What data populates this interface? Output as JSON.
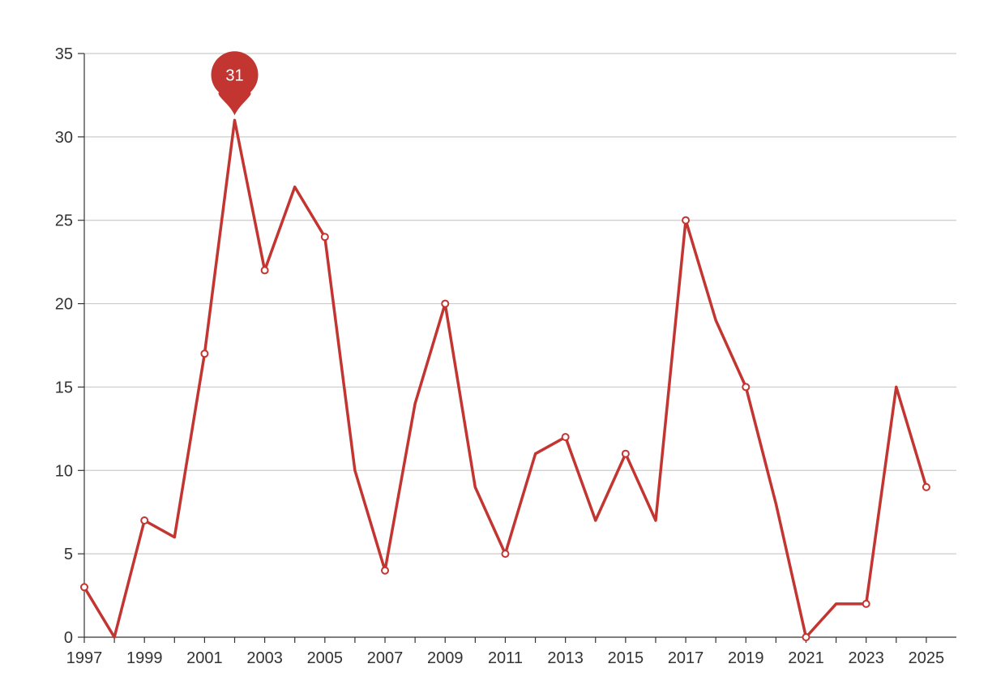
{
  "chart_data": {
    "type": "line",
    "x": [
      1997,
      1998,
      1999,
      2000,
      2001,
      2002,
      2003,
      2004,
      2005,
      2006,
      2007,
      2008,
      2009,
      2010,
      2011,
      2012,
      2013,
      2014,
      2015,
      2016,
      2017,
      2018,
      2019,
      2020,
      2021,
      2022,
      2023,
      2024,
      2025
    ],
    "series": [
      {
        "values": [
          3,
          0,
          7,
          6,
          17,
          31,
          22,
          27,
          24,
          10,
          4,
          14,
          20,
          9,
          5,
          11,
          12,
          7,
          11,
          7,
          25,
          19,
          15,
          8,
          0,
          2,
          2,
          15,
          9
        ]
      }
    ],
    "x_tick_labels": [
      "1997",
      "1999",
      "2001",
      "2003",
      "2005",
      "2007",
      "2009",
      "2011",
      "2013",
      "2015",
      "2017",
      "2019",
      "2021",
      "2023",
      "2025"
    ],
    "y_tick_labels": [
      "0",
      "5",
      "10",
      "15",
      "20",
      "25",
      "30",
      "35"
    ],
    "xlim": [
      1997,
      2026
    ],
    "ylim": [
      0,
      35
    ],
    "grid": true,
    "line_color": "#c23531",
    "marker_fill": "#ffffff",
    "max_marker": {
      "x": 2002,
      "value": 31,
      "label": "31"
    }
  }
}
